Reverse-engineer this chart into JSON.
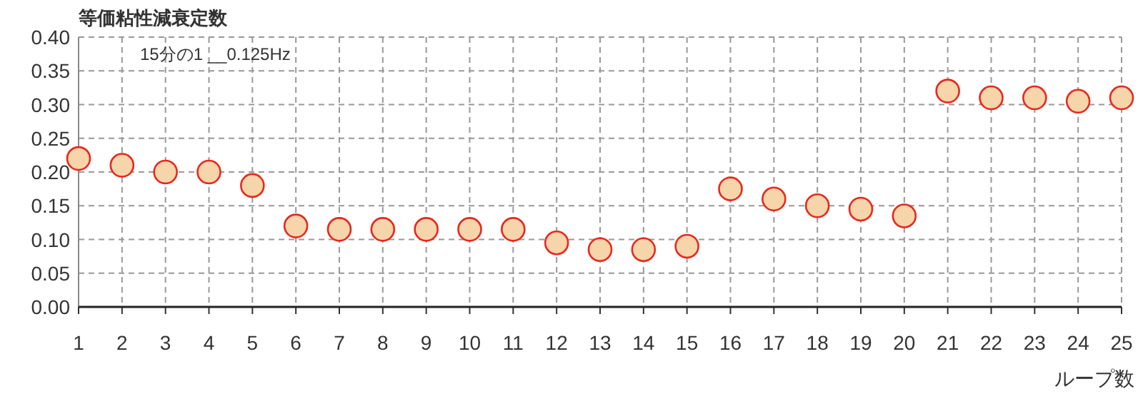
{
  "chart_data": {
    "type": "scatter",
    "ylabel": "等価粘性減衰定数",
    "subtitle": "15分の1 __0.125Hz",
    "xlabel": "ループ数",
    "x": [
      1,
      2,
      3,
      4,
      5,
      6,
      7,
      8,
      9,
      10,
      11,
      12,
      13,
      14,
      15,
      16,
      17,
      18,
      19,
      20,
      21,
      22,
      23,
      24,
      25
    ],
    "xlim": [
      1,
      25
    ],
    "xticks": [
      1,
      2,
      3,
      4,
      5,
      6,
      7,
      8,
      9,
      10,
      11,
      12,
      13,
      14,
      15,
      16,
      17,
      18,
      19,
      20,
      21,
      22,
      23,
      24,
      25
    ],
    "series": [
      {
        "color": "#e8281e",
        "values": [
          0.22,
          0.21,
          0.2,
          0.2,
          0.18,
          0.12,
          0.115,
          0.115,
          0.115,
          0.115,
          0.115,
          0.095,
          0.085,
          0.085,
          0.09,
          0.175,
          0.16,
          0.15,
          0.145,
          0.135,
          0.32,
          0.31,
          0.31,
          0.305,
          0.31
        ]
      }
    ],
    "ylim": [
      0,
      0.4
    ],
    "yticks": [
      {
        "value": 0,
        "label": "0.00"
      },
      {
        "value": 0.05,
        "label": "0.05"
      },
      {
        "value": 0.1,
        "label": "0.10"
      },
      {
        "value": 0.15,
        "label": "0.15"
      },
      {
        "value": 0.2,
        "label": "0.20"
      },
      {
        "value": 0.25,
        "label": "0.25"
      },
      {
        "value": 0.3,
        "label": "0.30"
      },
      {
        "value": 0.35,
        "label": "0.35"
      },
      {
        "value": 0.4,
        "label": "0.40"
      }
    ],
    "grid": true,
    "marker": "circle"
  }
}
